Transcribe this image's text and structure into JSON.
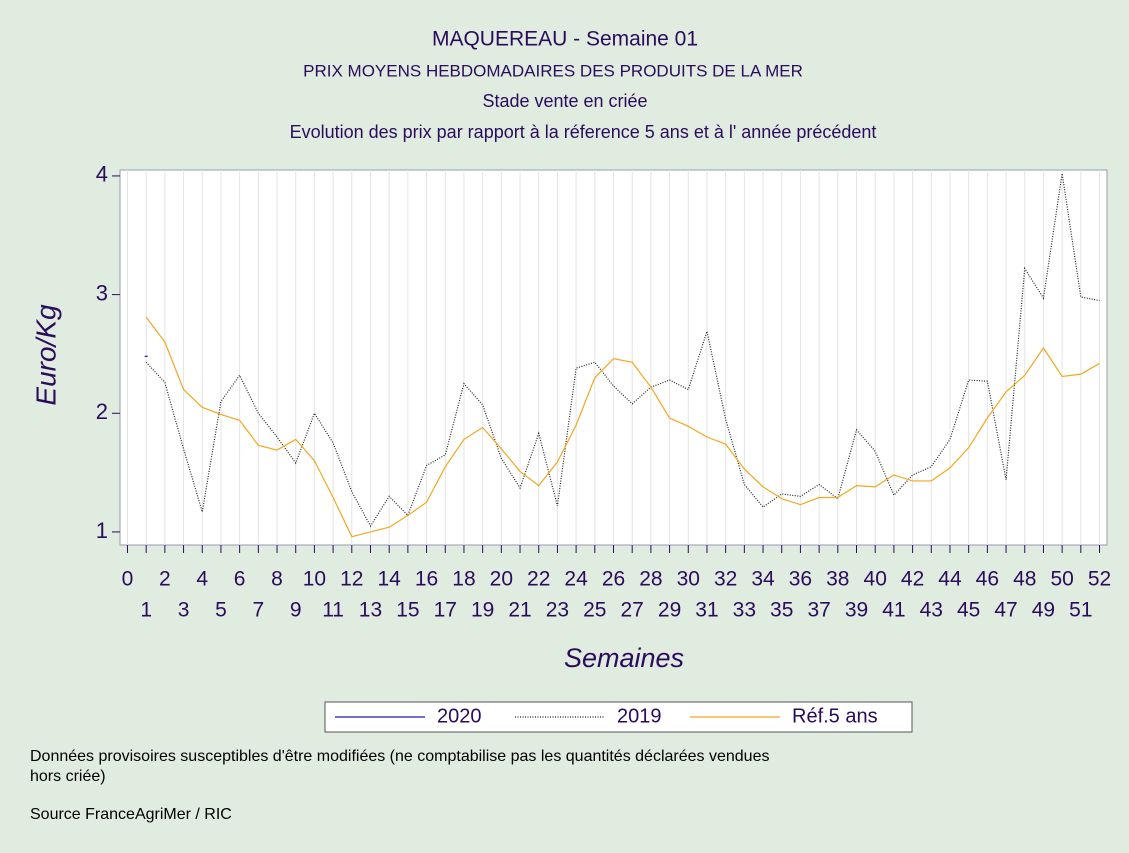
{
  "chart_data": {
    "type": "line",
    "title": "MAQUEREAU - Semaine 01",
    "subtitle": [
      "PRIX MOYENS HEBDOMADAIRES DES PRODUITS DE LA MER",
      "Stade vente en criée",
      "Evolution des prix par rapport à la réference 5 ans et à l' année précédent"
    ],
    "x_label": "Semaines",
    "y_label": "Euro/Kg",
    "x": [
      1,
      2,
      3,
      4,
      5,
      6,
      7,
      8,
      9,
      10,
      11,
      12,
      13,
      14,
      15,
      16,
      17,
      18,
      19,
      20,
      21,
      22,
      23,
      24,
      25,
      26,
      27,
      28,
      29,
      30,
      31,
      32,
      33,
      34,
      35,
      36,
      37,
      38,
      39,
      40,
      41,
      42,
      43,
      44,
      45,
      46,
      47,
      48,
      49,
      50,
      51,
      52
    ],
    "series": [
      {
        "name": "2020",
        "color": "#1a1aa8",
        "style": "solid",
        "values": [
          2.48,
          null,
          null,
          null,
          null,
          null,
          null,
          null,
          null,
          null,
          null,
          null,
          null,
          null,
          null,
          null,
          null,
          null,
          null,
          null,
          null,
          null,
          null,
          null,
          null,
          null,
          null,
          null,
          null,
          null,
          null,
          null,
          null,
          null,
          null,
          null,
          null,
          null,
          null,
          null,
          null,
          null,
          null,
          null,
          null,
          null,
          null,
          null,
          null,
          null,
          null,
          null
        ]
      },
      {
        "name": "2019",
        "color": "#222222",
        "style": "dotted",
        "values": [
          2.43,
          2.26,
          1.7,
          1.17,
          2.1,
          2.32,
          2.0,
          1.8,
          1.58,
          2.0,
          1.75,
          1.34,
          1.05,
          1.3,
          1.14,
          1.56,
          1.65,
          2.25,
          2.07,
          1.62,
          1.37,
          1.83,
          1.22,
          2.38,
          2.43,
          2.23,
          2.08,
          2.22,
          2.28,
          2.2,
          2.69,
          1.95,
          1.4,
          1.21,
          1.32,
          1.3,
          1.4,
          1.28,
          1.86,
          1.68,
          1.31,
          1.48,
          1.55,
          1.78,
          2.28,
          2.27,
          1.44,
          3.22,
          2.97,
          4.02,
          2.98,
          2.95
        ]
      },
      {
        "name": "Réf.5 ans",
        "color": "#f0a820",
        "style": "solid",
        "values": [
          2.81,
          2.6,
          2.2,
          2.05,
          1.99,
          1.94,
          1.73,
          1.69,
          1.78,
          1.6,
          1.29,
          0.96,
          1.0,
          1.04,
          1.14,
          1.25,
          1.55,
          1.78,
          1.88,
          1.7,
          1.51,
          1.39,
          1.59,
          1.9,
          2.3,
          2.46,
          2.43,
          2.22,
          1.96,
          1.89,
          1.8,
          1.74,
          1.53,
          1.38,
          1.28,
          1.23,
          1.29,
          1.29,
          1.39,
          1.38,
          1.48,
          1.43,
          1.43,
          1.54,
          1.71,
          1.96,
          2.18,
          2.32,
          2.55,
          2.31,
          2.33,
          2.42
        ]
      }
    ],
    "xlim": [
      -0.4,
      52.4
    ],
    "xticks": [
      0,
      1,
      2,
      3,
      4,
      5,
      6,
      7,
      8,
      9,
      10,
      11,
      12,
      13,
      14,
      15,
      16,
      17,
      18,
      19,
      20,
      21,
      22,
      23,
      24,
      25,
      26,
      27,
      28,
      29,
      30,
      31,
      32,
      33,
      34,
      35,
      36,
      37,
      38,
      39,
      40,
      41,
      42,
      43,
      44,
      45,
      46,
      47,
      48,
      49,
      50,
      51,
      52
    ],
    "ylim": [
      0.89,
      4.05
    ],
    "yticks": [
      1,
      2,
      3,
      4
    ],
    "grid": "x",
    "legend": "bottom",
    "notes": [
      "Données provisoires susceptibles d'être modifiées (ne comptabilise pas les quantités déclarées vendues",
      "hors criée)",
      "Source FranceAgriMer / RIC"
    ]
  }
}
